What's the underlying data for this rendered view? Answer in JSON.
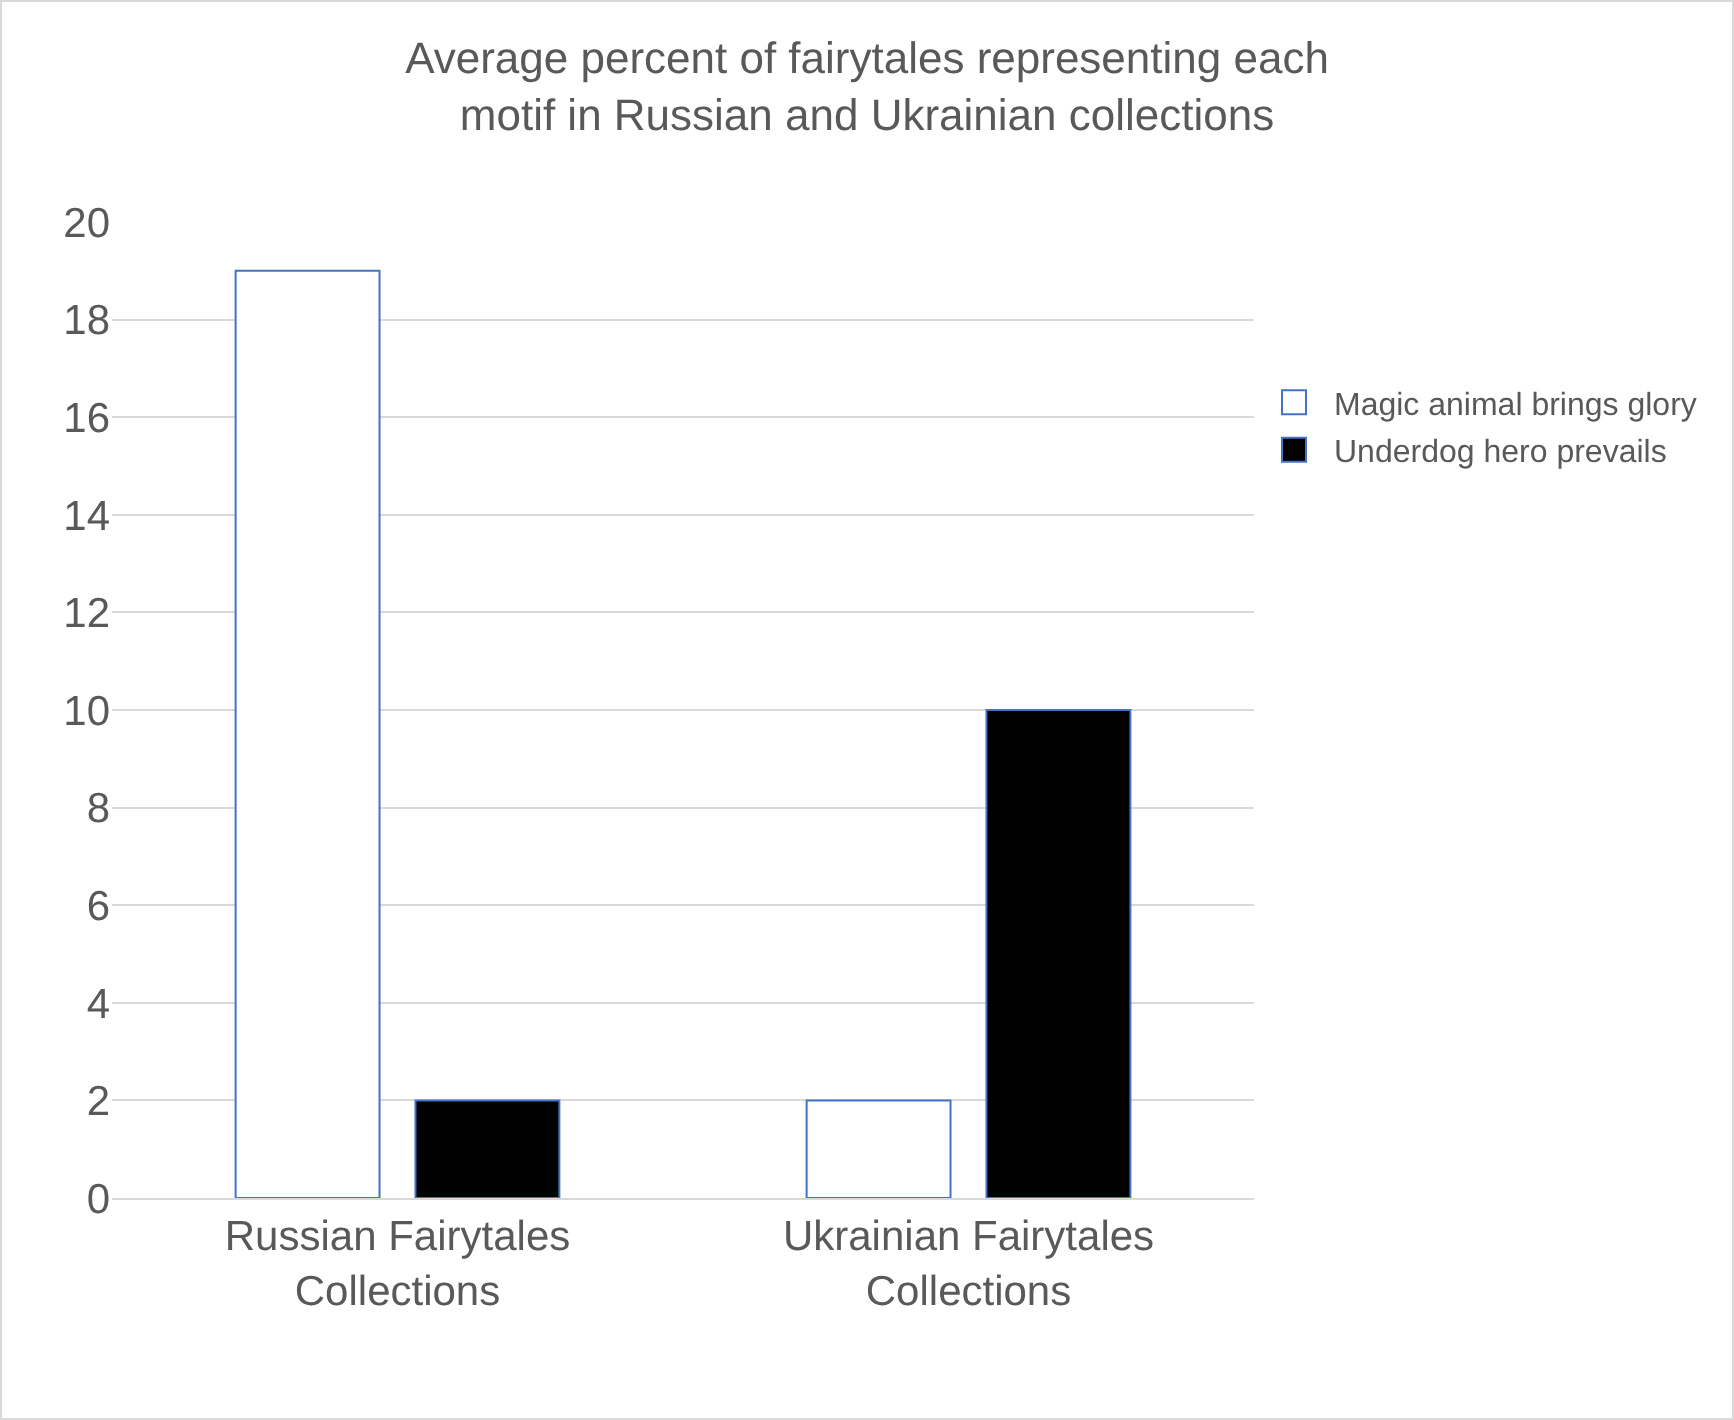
{
  "chart_data": {
    "type": "bar",
    "title": "Average percent of fairytales representing each motif in Russian and Ukrainian collections",
    "categories": [
      "Russian Fairytales Collections",
      "Ukrainian Fairytales Collections"
    ],
    "series": [
      {
        "name": "Magic animal brings glory",
        "color": "#ffffff",
        "values": [
          19,
          2
        ]
      },
      {
        "name": "Underdog hero prevails",
        "color": "#000000",
        "values": [
          2,
          10
        ]
      }
    ],
    "ylim": [
      0,
      20
    ],
    "yticks": [
      0,
      2,
      4,
      6,
      8,
      10,
      12,
      14,
      16,
      18,
      20
    ],
    "grid": "y",
    "legend": "right"
  }
}
